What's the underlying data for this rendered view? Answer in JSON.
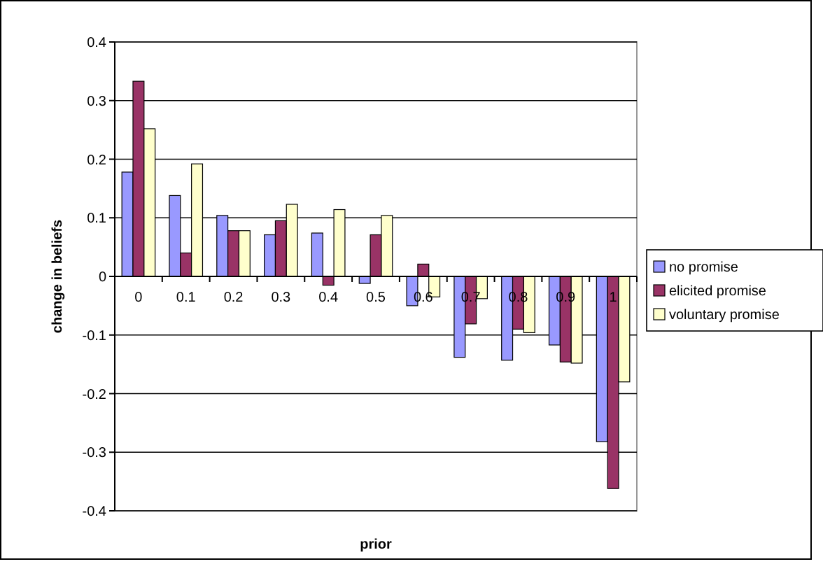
{
  "chart_data": {
    "type": "bar",
    "xlabel": "prior",
    "ylabel": "change in beliefs",
    "categories": [
      "0",
      "0.1",
      "0.2",
      "0.3",
      "0.4",
      "0.5",
      "0.6",
      "0.7",
      "0.8",
      "0.9",
      "1"
    ],
    "series": [
      {
        "name": "no promise",
        "color": "#9999ff",
        "values": [
          0.178,
          0.138,
          0.104,
          0.071,
          0.074,
          -0.012,
          -0.05,
          -0.138,
          -0.143,
          -0.117,
          -0.282
        ]
      },
      {
        "name": "elicited promise",
        "color": "#993366",
        "values": [
          0.333,
          0.04,
          0.078,
          0.095,
          -0.015,
          0.071,
          0.021,
          -0.081,
          -0.09,
          -0.146,
          -0.362
        ]
      },
      {
        "name": "voluntary promise",
        "color": "#ffffcc",
        "values": [
          0.252,
          0.192,
          0.078,
          0.123,
          0.114,
          0.104,
          -0.035,
          -0.038,
          -0.096,
          -0.148,
          -0.18
        ]
      }
    ],
    "ylim": [
      -0.4,
      0.4
    ],
    "yticks": [
      -0.4,
      -0.3,
      -0.2,
      -0.1,
      0,
      0.1,
      0.2,
      0.3,
      0.4
    ],
    "grid": "y",
    "legend": "right"
  }
}
